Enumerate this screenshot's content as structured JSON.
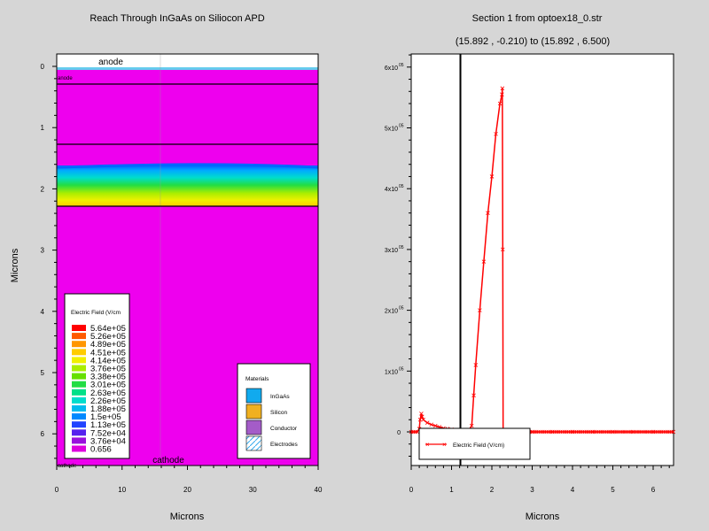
{
  "left_plot": {
    "title": "Reach Through InGaAs on Siliocon APD",
    "xlabel": "Microns",
    "ylabel": "Microns",
    "xticks": [
      "0",
      "10",
      "20",
      "30",
      "40"
    ],
    "yticks": [
      "0",
      "1",
      "2",
      "3",
      "4",
      "5",
      "6"
    ],
    "anode_label": "anode",
    "anode_small_label": "anode",
    "cathode_label": "cathode",
    "cathode_small_label": "cathode",
    "legend_title": "Electric Field (V/cm",
    "legend_levels": [
      "5.64e+05",
      "5.26e+05",
      "4.89e+05",
      "4.51e+05",
      "4.14e+05",
      "3.76e+05",
      "3.38e+05",
      "3.01e+05",
      "2.63e+05",
      "2.26e+05",
      "1.88e+05",
      "1.5e+05",
      "1.13e+05",
      "7.52e+04",
      "3.76e+04",
      "0.656"
    ],
    "materials_title": "Materials",
    "materials": [
      {
        "name": "InGaAs",
        "color": "#11aaee"
      },
      {
        "name": "Silicon",
        "color": "#f0b020"
      },
      {
        "name": "Conductor",
        "color": "#a45cc8"
      },
      {
        "name": "Electrodes",
        "color": "#ffffff"
      }
    ]
  },
  "right_plot": {
    "title": "Section 1 from optoex18_0.str",
    "subtitle": "(15.892 , -0.210) to (15.892 , 6.500)",
    "xlabel": "Microns",
    "xticks": [
      "0",
      "1",
      "2",
      "3",
      "4",
      "5",
      "6"
    ],
    "yticks": [
      {
        "mant": "0",
        "exp": ""
      },
      {
        "mant": "1x10",
        "exp": "05"
      },
      {
        "mant": "2x10",
        "exp": "05"
      },
      {
        "mant": "3x10",
        "exp": "05"
      },
      {
        "mant": "4x10",
        "exp": "05"
      },
      {
        "mant": "5x10",
        "exp": "05"
      },
      {
        "mant": "6x10",
        "exp": "05"
      }
    ],
    "legend_label": "Electric Field (V/cm)"
  },
  "chart_data": [
    {
      "type": "heatmap",
      "title": "Reach Through InGaAs on Siliocon APD",
      "xlabel": "Microns",
      "ylabel": "Microns",
      "xlim": [
        0,
        40
      ],
      "ylim": [
        6.5,
        -0.05
      ],
      "layer_boundaries_y": [
        0.27,
        1.27,
        2.27
      ],
      "field_gradient_y": [
        1.6,
        2.28
      ],
      "colorbar_label": "Electric Field (V/cm",
      "colorbar_levels": [
        564000,
        526000,
        489000,
        451000,
        414000,
        376000,
        338000,
        301000,
        263000,
        226000,
        188000,
        150000,
        113000,
        75200,
        37600,
        0.656
      ],
      "colorbar_colors": [
        "#ff0000",
        "#ff5a00",
        "#ff9600",
        "#ffcc00",
        "#f0f000",
        "#aaee00",
        "#66e000",
        "#22dd44",
        "#00e088",
        "#00ddcc",
        "#00bbee",
        "#0088ff",
        "#2244ff",
        "#5522ee",
        "#9911dd",
        "#dd00dd"
      ]
    },
    {
      "type": "line",
      "title": "Section 1 from optoex18_0.str",
      "subtitle": "(15.892 , -0.210) to (15.892 , 6.500)",
      "xlabel": "Microns",
      "ylabel": "",
      "xlim": [
        0,
        6.5
      ],
      "ylim": [
        -50000,
        620000
      ],
      "cursor_x": 1.22,
      "series": [
        {
          "name": "Electric Field (V/cm)",
          "color": "#ff0000",
          "x": [
            0.0,
            0.05,
            0.1,
            0.15,
            0.2,
            0.22,
            0.25,
            0.27,
            0.3,
            0.4,
            0.5,
            0.6,
            0.7,
            0.8,
            0.9,
            1.0,
            1.1,
            1.2,
            1.27,
            1.4,
            1.5,
            1.55,
            1.6,
            1.7,
            1.8,
            1.9,
            2.0,
            2.1,
            2.2,
            2.25,
            2.26,
            2.27,
            2.28,
            2.4,
            2.6,
            2.8,
            3.0,
            3.5,
            4.0,
            4.5,
            5.0,
            5.5,
            6.0,
            6.5
          ],
          "y": [
            0,
            0,
            0,
            0,
            5000,
            20000,
            30000,
            25000,
            20000,
            15000,
            12000,
            10000,
            8000,
            6000,
            5000,
            4000,
            3000,
            2000,
            0,
            0,
            10000,
            60000,
            110000,
            200000,
            280000,
            360000,
            420000,
            490000,
            540000,
            555000,
            565000,
            300000,
            0,
            0,
            0,
            0,
            0,
            0,
            0,
            0,
            0,
            0,
            0,
            0
          ]
        }
      ]
    }
  ]
}
